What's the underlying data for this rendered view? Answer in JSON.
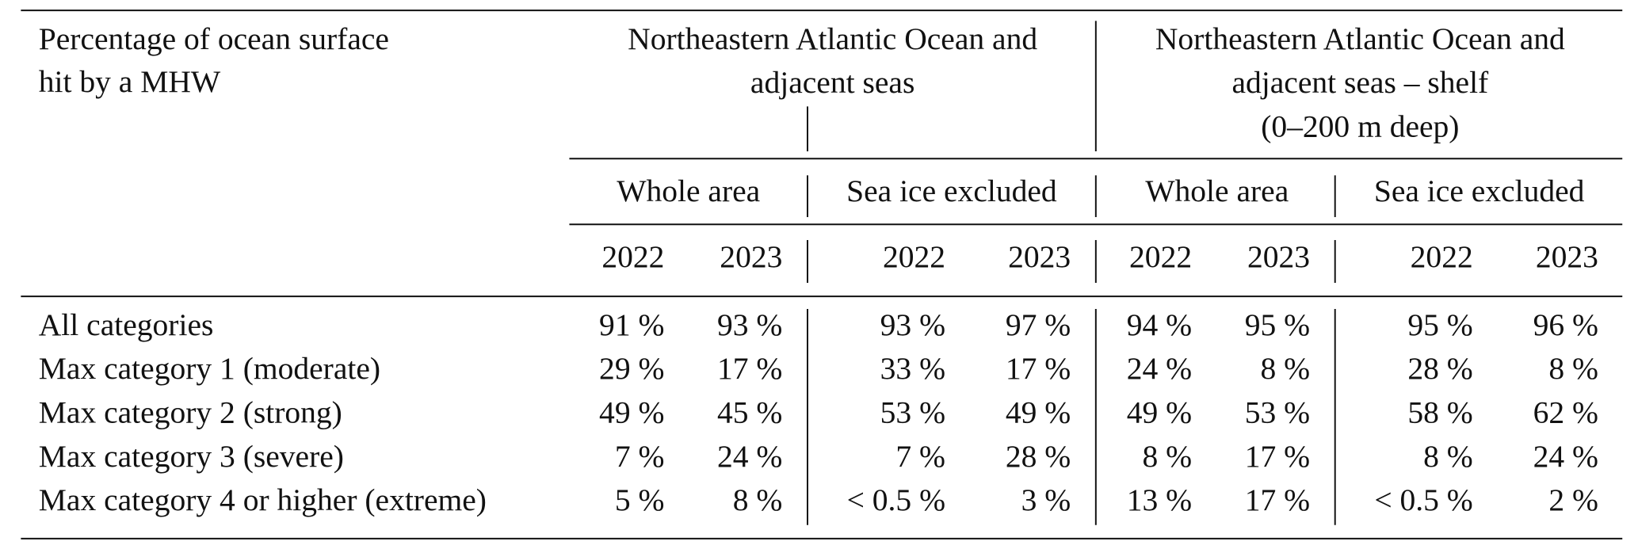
{
  "header": {
    "row_label_lines": [
      "Percentage of ocean surface",
      "hit by a MHW"
    ],
    "groups": [
      {
        "title_lines": [
          "Northeastern Atlantic Ocean and",
          "adjacent seas"
        ]
      },
      {
        "title_lines": [
          "Northeastern Atlantic Ocean and",
          "adjacent seas – shelf",
          "(0–200 m deep)"
        ]
      }
    ],
    "subgroups": [
      "Whole area",
      "Sea ice excluded",
      "Whole area",
      "Sea ice excluded"
    ],
    "years": [
      "2022",
      "2023",
      "2022",
      "2023",
      "2022",
      "2023",
      "2022",
      "2023"
    ]
  },
  "table": {
    "rows": [
      {
        "label": "All categories",
        "cells": [
          "91 %",
          "93 %",
          "93 %",
          "97 %",
          "94 %",
          "95 %",
          "95 %",
          "96 %"
        ]
      },
      {
        "label": "Max category 1 (moderate)",
        "cells": [
          "29 %",
          "17 %",
          "33 %",
          "17 %",
          "24 %",
          "8 %",
          "28 %",
          "8 %"
        ]
      },
      {
        "label": "Max category 2 (strong)",
        "cells": [
          "49 %",
          "45 %",
          "53 %",
          "49 %",
          "49 %",
          "53 %",
          "58 %",
          "62 %"
        ]
      },
      {
        "label": "Max category 3 (severe)",
        "cells": [
          "7 %",
          "24 %",
          "7 %",
          "28 %",
          "8 %",
          "17 %",
          "8 %",
          "24 %"
        ]
      },
      {
        "label": "Max category 4 or higher (extreme)",
        "cells": [
          "5 %",
          "8 %",
          "< 0.5 %",
          "3 %",
          "13 %",
          "17 %",
          "< 0.5 %",
          "2 %"
        ]
      }
    ]
  }
}
